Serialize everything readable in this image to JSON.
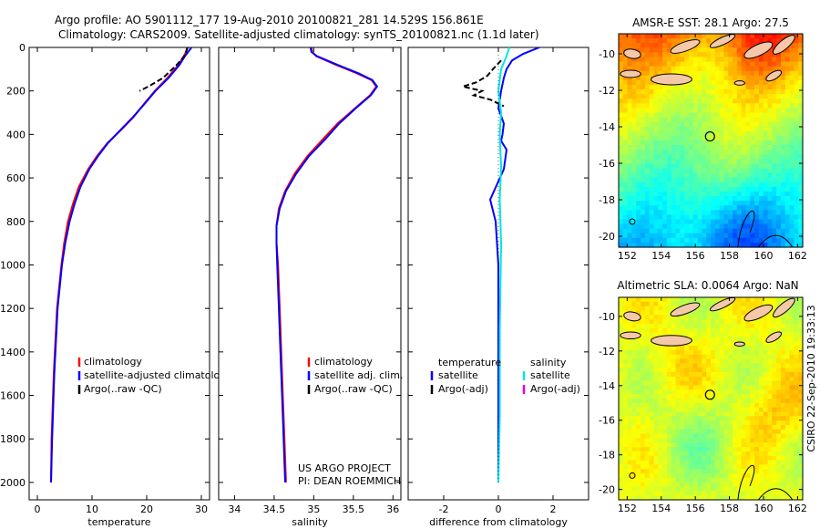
{
  "header": {
    "line1": "Argo profile: AO 5901112_177 19-Aug-2010 20100821_281 14.529S 156.861E",
    "line2": "Climatology: CARS2009. Satellite-adjusted climatology: synTS_20100821.nc (1.1d later)"
  },
  "credit": {
    "line1": "US ARGO PROJECT",
    "line2": "PI: DEAN ROEMMICH"
  },
  "stamp": "CSIRO 22-Sep-2010 19:33:13",
  "colors": {
    "climatology": "#ff0000",
    "satellite": "#0000ff",
    "argo": "#000000",
    "diff_satellite": "#00e5e5",
    "diff_argo_salinity": "#e000e0"
  },
  "chart_data": [
    {
      "type": "line",
      "xlabel": "temperature",
      "ylabel": "",
      "xlim": [
        -1.5,
        31.5
      ],
      "ylim": [
        2080,
        0
      ],
      "xticks": [
        0,
        10,
        20,
        30
      ],
      "yticks": [
        0,
        200,
        400,
        600,
        800,
        1000,
        1200,
        1400,
        1600,
        1800,
        2000
      ],
      "legend": [
        "climatology",
        "satellite-adjusted climatology",
        "Argo(..raw -QC)"
      ],
      "series": [
        {
          "name": "climatology",
          "color": "#ff0000",
          "x": [
            27.4,
            27.2,
            26.8,
            25.8,
            23.8,
            21.5,
            19.5,
            17.6,
            15.3,
            12.8,
            10.9,
            9.3,
            7.6,
            6.5,
            5.6,
            4.9,
            4.4,
            4.0,
            3.6,
            3.3,
            3.0,
            2.8,
            2.6,
            2.5
          ],
          "y": [
            0,
            20,
            40,
            80,
            140,
            200,
            260,
            320,
            380,
            440,
            500,
            560,
            640,
            720,
            800,
            900,
            1000,
            1100,
            1200,
            1350,
            1500,
            1650,
            1800,
            2000
          ]
        },
        {
          "name": "satellite-adjusted climatology",
          "color": "#0000ff",
          "x": [
            28.2,
            27.6,
            27.0,
            26.0,
            24.0,
            21.6,
            19.6,
            17.5,
            15.2,
            12.9,
            11.1,
            9.5,
            7.9,
            6.8,
            5.9,
            5.1,
            4.5,
            4.1,
            3.7,
            3.4,
            3.1,
            2.9,
            2.7,
            2.5
          ],
          "y": [
            0,
            20,
            40,
            80,
            140,
            200,
            260,
            320,
            380,
            440,
            500,
            560,
            640,
            720,
            800,
            900,
            1000,
            1100,
            1200,
            1350,
            1500,
            1650,
            1800,
            2000
          ]
        },
        {
          "name": "Argo(..raw -QC)",
          "color": "#000000",
          "dashed": true,
          "x": [
            27.5,
            27.2,
            26.9,
            25.5,
            23.0,
            20.3,
            18.7
          ],
          "y": [
            0,
            20,
            40,
            80,
            140,
            180,
            200
          ]
        }
      ]
    },
    {
      "type": "line",
      "xlabel": "salinity",
      "ylabel": "",
      "xlim": [
        33.8,
        36.1
      ],
      "ylim": [
        2080,
        0
      ],
      "xticks": [
        34,
        34.5,
        35,
        35.5,
        36
      ],
      "xtick_labels": [
        "34",
        "34.5",
        "35",
        "35.5",
        "36"
      ],
      "yticks": [
        0,
        200,
        400,
        600,
        800,
        1000,
        1200,
        1400,
        1600,
        1800,
        2000
      ],
      "legend": [
        "climatology",
        "satellite adj. clim.",
        "Argo(..raw -QC)"
      ],
      "credit": [
        "US ARGO PROJECT",
        "PI: DEAN ROEMMICH"
      ],
      "series": [
        {
          "name": "climatology",
          "color": "#ff0000",
          "x": [
            34.97,
            34.98,
            35.03,
            35.28,
            35.55,
            35.73,
            35.79,
            35.71,
            35.52,
            35.3,
            35.12,
            34.92,
            34.76,
            34.64,
            34.56,
            34.53,
            34.53,
            34.55,
            34.57,
            34.59,
            34.61,
            34.63,
            34.65
          ],
          "y": [
            0,
            20,
            40,
            80,
            120,
            150,
            180,
            220,
            280,
            350,
            420,
            500,
            580,
            660,
            740,
            820,
            900,
            1000,
            1200,
            1400,
            1600,
            1800,
            2000
          ]
        },
        {
          "name": "satellite adj. clim.",
          "color": "#0000ff",
          "x": [
            34.96,
            34.97,
            35.04,
            35.3,
            35.57,
            35.74,
            35.8,
            35.72,
            35.53,
            35.32,
            35.15,
            34.94,
            34.78,
            34.65,
            34.57,
            34.53,
            34.53,
            34.54,
            34.56,
            34.58,
            34.6,
            34.62,
            34.64
          ],
          "y": [
            0,
            20,
            40,
            80,
            120,
            150,
            180,
            220,
            280,
            350,
            420,
            500,
            580,
            660,
            740,
            820,
            900,
            1000,
            1200,
            1400,
            1600,
            1800,
            2000
          ]
        }
      ]
    },
    {
      "type": "line",
      "xlabel": "difference from climatology",
      "ylabel": "",
      "xlim": [
        -3.3,
        3.3
      ],
      "ylim": [
        2080,
        0
      ],
      "xticks": [
        -2,
        0,
        2
      ],
      "yticks": [
        0,
        200,
        400,
        600,
        800,
        1000,
        1200,
        1400,
        1600,
        1800,
        2000
      ],
      "legend_temperature": {
        "title": "temperature",
        "entries": [
          "satellite",
          "Argo(-adj)"
        ]
      },
      "legend_salinity": {
        "title": "salinity",
        "entries": [
          "satellite",
          "Argo(-adj)"
        ]
      },
      "series": [
        {
          "name": "temperature satellite",
          "color": "#0000ff",
          "x": [
            1.5,
            0.9,
            0.5,
            0.3,
            0.2,
            0.1,
            0.0,
            0.2,
            0.15,
            0.1,
            0.3,
            0.2,
            -0.3,
            -0.1,
            0.0,
            0.0,
            0.0,
            0.0,
            0.0
          ],
          "y": [
            0,
            30,
            60,
            100,
            140,
            200,
            280,
            350,
            400,
            430,
            470,
            560,
            700,
            800,
            1000,
            1300,
            1600,
            1800,
            2000
          ]
        },
        {
          "name": "temperature Argo(-adj)",
          "color": "#000000",
          "dashed": true,
          "x": [
            0.1,
            -0.2,
            -0.4,
            -0.8,
            -1.3,
            -0.6,
            -0.9,
            -0.3,
            0.2
          ],
          "y": [
            60,
            100,
            130,
            160,
            180,
            200,
            220,
            240,
            270
          ]
        },
        {
          "name": "salinity satellite",
          "color": "#00e5e5",
          "x": [
            0.4,
            0.3,
            0.1,
            0.0,
            0.1,
            0.05,
            0.1,
            0.05,
            0.1,
            0.05,
            0.05,
            0.0
          ],
          "y": [
            0,
            40,
            100,
            200,
            300,
            400,
            550,
            700,
            900,
            1300,
            1700,
            2000
          ]
        }
      ]
    },
    {
      "type": "heatmap",
      "title": "AMSR-E SST: 28.1 Argo: 27.5",
      "xlim": [
        151.5,
        162.3
      ],
      "ylim": [
        -20.6,
        -8.9
      ],
      "xticks": [
        152,
        154,
        156,
        158,
        160,
        162
      ],
      "yticks": [
        -10,
        -12,
        -14,
        -16,
        -18,
        -20
      ],
      "marker": {
        "lon": 156.861,
        "lat": -14.529
      },
      "color_scale": "jet"
    },
    {
      "type": "heatmap",
      "title": "Altimetric SLA: 0.0064 Argo: NaN",
      "xlim": [
        151.5,
        162.3
      ],
      "ylim": [
        -20.6,
        -8.9
      ],
      "xticks": [
        152,
        154,
        156,
        158,
        160,
        162
      ],
      "yticks": [
        -10,
        -12,
        -14,
        -16,
        -18,
        -20
      ],
      "marker": {
        "lon": 156.861,
        "lat": -14.529
      },
      "color_scale": "jet"
    }
  ]
}
